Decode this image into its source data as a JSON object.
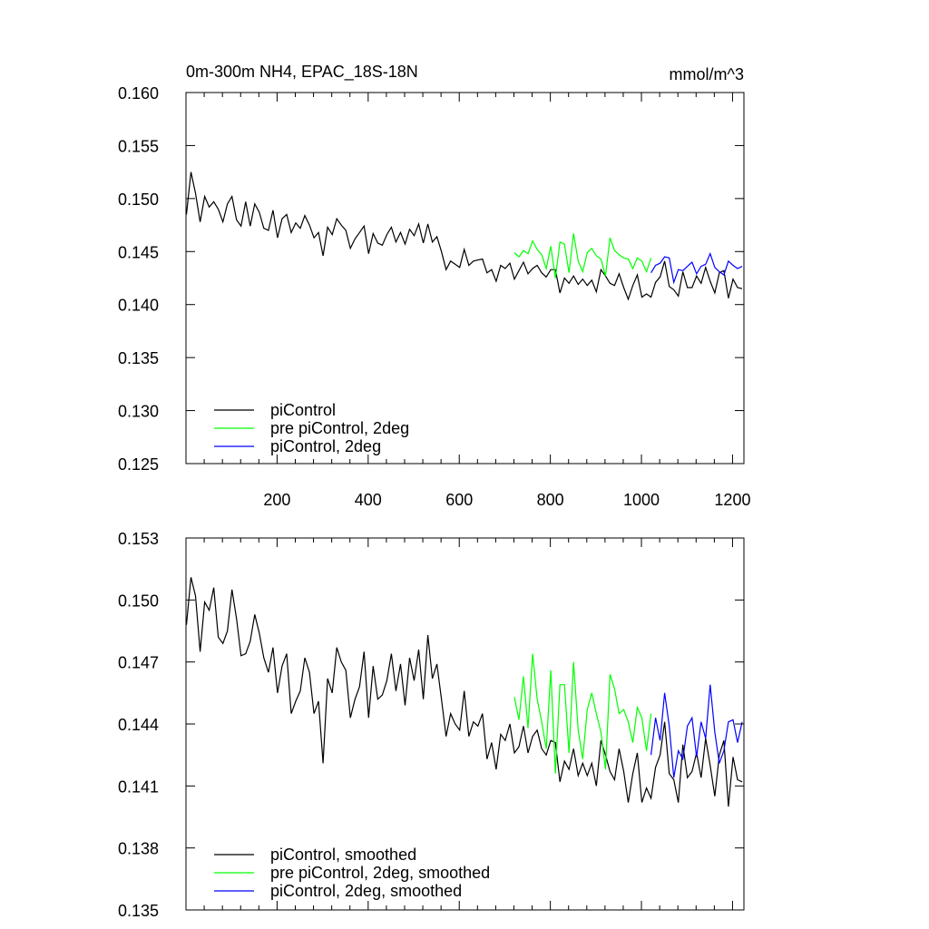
{
  "chart_data": [
    {
      "type": "line",
      "title": "0m-300m NH4, EPAC_18S-18N",
      "units": "mmol/m^3",
      "xlim": [
        0,
        1225
      ],
      "ylim": [
        0.125,
        0.16
      ],
      "x_ticks": [
        200,
        400,
        600,
        800,
        1000,
        1200
      ],
      "x_tick_labels": [
        "200",
        "400",
        "600",
        "800",
        "1000",
        "1200"
      ],
      "y_ticks": [
        0.125,
        0.13,
        0.135,
        0.14,
        0.145,
        0.15,
        0.155,
        0.16
      ],
      "y_tick_labels": [
        "0.125",
        "0.130",
        "0.135",
        "0.140",
        "0.145",
        "0.150",
        "0.155",
        "0.160"
      ],
      "legend_position": "bottom-left",
      "series": [
        {
          "name": "piControl",
          "color": "#000000",
          "x_start": 1,
          "step": 10,
          "values": [
            0.1485,
            0.1525,
            0.1505,
            0.1478,
            0.1502,
            0.1492,
            0.1497,
            0.149,
            0.1478,
            0.1495,
            0.1502,
            0.148,
            0.1474,
            0.1497,
            0.1474,
            0.1495,
            0.1487,
            0.1472,
            0.147,
            0.1489,
            0.1463,
            0.1481,
            0.1485,
            0.1468,
            0.1477,
            0.1472,
            0.1484,
            0.1475,
            0.1463,
            0.1468,
            0.1446,
            0.1473,
            0.1466,
            0.1481,
            0.1475,
            0.147,
            0.1453,
            0.1462,
            0.1468,
            0.1474,
            0.1448,
            0.1467,
            0.1458,
            0.1456,
            0.1466,
            0.1473,
            0.1459,
            0.1468,
            0.1457,
            0.1471,
            0.1465,
            0.1476,
            0.1458,
            0.1476,
            0.1459,
            0.1464,
            0.145,
            0.1433,
            0.1441,
            0.1438,
            0.1435,
            0.1452,
            0.1437,
            0.1441,
            0.1442,
            0.1443,
            0.143,
            0.1433,
            0.1422,
            0.1437,
            0.1434,
            0.1439,
            0.1424,
            0.1432,
            0.144,
            0.1429,
            0.1434,
            0.1437,
            0.143,
            0.1426,
            0.1433,
            0.1433,
            0.1411,
            0.1425,
            0.142,
            0.1427,
            0.1419,
            0.1424,
            0.1418,
            0.1423,
            0.1412,
            0.1433,
            0.1427,
            0.142,
            0.1418,
            0.1429,
            0.1416,
            0.1405,
            0.1418,
            0.1428,
            0.1407,
            0.141,
            0.1407,
            0.1421,
            0.1426,
            0.1441,
            0.1417,
            0.1414,
            0.1408,
            0.1431,
            0.1416,
            0.1416,
            0.1427,
            0.142,
            0.1435,
            0.1422,
            0.1411,
            0.143,
            0.1432,
            0.1406,
            0.1424,
            0.1416,
            0.1415
          ]
        },
        {
          "name": "pre piControl, 2deg",
          "color": "#00ff00",
          "x_start": 721,
          "step": 10,
          "values": [
            0.1449,
            0.1445,
            0.1451,
            0.1448,
            0.146,
            0.1452,
            0.1447,
            0.1434,
            0.1455,
            0.1425,
            0.1459,
            0.1457,
            0.143,
            0.1467,
            0.1441,
            0.1431,
            0.1449,
            0.1453,
            0.1446,
            0.1443,
            0.1427,
            0.1463,
            0.1451,
            0.1447,
            0.1444,
            0.1443,
            0.1434,
            0.1444,
            0.1441,
            0.1431,
            0.1444
          ]
        },
        {
          "name": "piControl, 2deg",
          "color": "#0000ff",
          "x_start": 1021,
          "step": 10,
          "values": [
            0.143,
            0.1437,
            0.1439,
            0.1445,
            0.1444,
            0.1421,
            0.1433,
            0.1432,
            0.1436,
            0.144,
            0.1429,
            0.1436,
            0.1438,
            0.1448,
            0.1435,
            0.1431,
            0.1428,
            0.1441,
            0.1437,
            0.1434,
            0.1436
          ]
        }
      ]
    },
    {
      "type": "line",
      "xlim": [
        0,
        1225
      ],
      "ylim": [
        0.135,
        0.153
      ],
      "x_ticks": [
        200,
        400,
        600,
        800,
        1000,
        1200
      ],
      "y_ticks": [
        0.135,
        0.138,
        0.141,
        0.144,
        0.147,
        0.15,
        0.153
      ],
      "y_tick_labels": [
        "0.135",
        "0.138",
        "0.141",
        "0.144",
        "0.147",
        "0.150",
        "0.153"
      ],
      "legend_position": "bottom-left",
      "series": [
        {
          "name": "piControl, smoothed",
          "color": "#000000",
          "x_start": 1,
          "step": 10,
          "values": [
            0.1488,
            0.1511,
            0.1502,
            0.1475,
            0.1499,
            0.1495,
            0.1506,
            0.1482,
            0.1479,
            0.1485,
            0.1505,
            0.1491,
            0.1473,
            0.1474,
            0.148,
            0.1493,
            0.1484,
            0.1472,
            0.1465,
            0.1477,
            0.1455,
            0.1468,
            0.1474,
            0.1445,
            0.1451,
            0.1456,
            0.1472,
            0.1465,
            0.1445,
            0.1451,
            0.1421,
            0.1462,
            0.1455,
            0.1477,
            0.147,
            0.1466,
            0.1443,
            0.1452,
            0.1458,
            0.1475,
            0.1443,
            0.1468,
            0.1452,
            0.1454,
            0.1461,
            0.1474,
            0.1456,
            0.1469,
            0.1449,
            0.1472,
            0.1461,
            0.1476,
            0.1452,
            0.1483,
            0.1462,
            0.1469,
            0.1452,
            0.1434,
            0.1445,
            0.144,
            0.1437,
            0.1456,
            0.1434,
            0.1441,
            0.1439,
            0.1445,
            0.1423,
            0.1431,
            0.1418,
            0.1435,
            0.1432,
            0.144,
            0.1426,
            0.1429,
            0.1439,
            0.1426,
            0.1434,
            0.1437,
            0.1428,
            0.1425,
            0.1432,
            0.1431,
            0.1412,
            0.1422,
            0.1418,
            0.1428,
            0.1415,
            0.1421,
            0.1415,
            0.1421,
            0.141,
            0.1432,
            0.1425,
            0.1417,
            0.1413,
            0.1428,
            0.1417,
            0.1402,
            0.1416,
            0.1426,
            0.1402,
            0.1409,
            0.1404,
            0.1419,
            0.1425,
            0.1441,
            0.1416,
            0.1413,
            0.1402,
            0.143,
            0.1414,
            0.1417,
            0.1426,
            0.1414,
            0.1433,
            0.142,
            0.1405,
            0.1425,
            0.1432,
            0.14,
            0.1424,
            0.1413,
            0.1412
          ]
        },
        {
          "name": "pre piControl, 2deg, smoothed",
          "color": "#00ff00",
          "x_start": 721,
          "step": 10,
          "values": [
            0.1453,
            0.1442,
            0.1463,
            0.1438,
            0.1474,
            0.1452,
            0.1441,
            0.1428,
            0.1466,
            0.1416,
            0.1459,
            0.1459,
            0.1426,
            0.147,
            0.1437,
            0.1423,
            0.1447,
            0.1455,
            0.1445,
            0.1436,
            0.1418,
            0.1464,
            0.1457,
            0.1445,
            0.1447,
            0.1441,
            0.1431,
            0.1448,
            0.1443,
            0.1427,
            0.1445
          ]
        },
        {
          "name": "piControl, 2deg, smoothed",
          "color": "#0000ff",
          "x_start": 1021,
          "step": 10,
          "values": [
            0.1425,
            0.1443,
            0.1432,
            0.1455,
            0.1439,
            0.1414,
            0.1427,
            0.1423,
            0.1439,
            0.1443,
            0.1424,
            0.1441,
            0.1433,
            0.1459,
            0.1436,
            0.1421,
            0.1427,
            0.1441,
            0.1442,
            0.1431,
            0.1441
          ]
        }
      ]
    }
  ]
}
